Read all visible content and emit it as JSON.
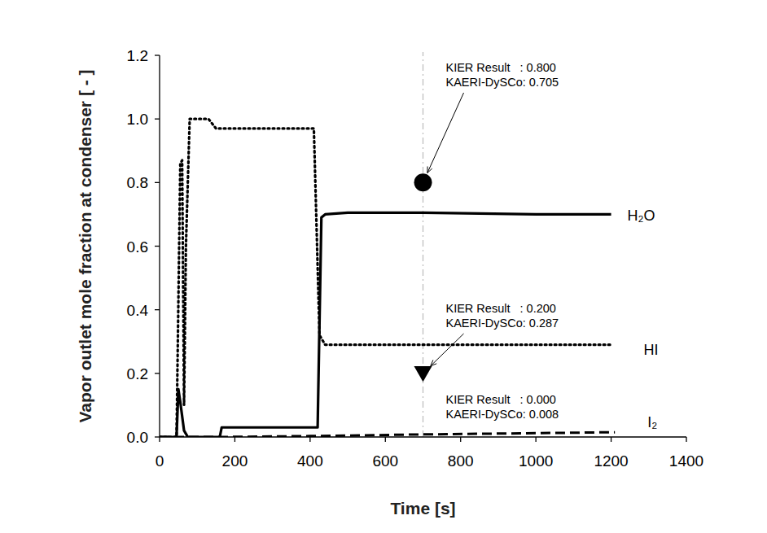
{
  "chart_data": {
    "type": "line",
    "x_label": "Time [s]",
    "y_label": "Vapor outlet mole fraction at condenser [ - ]",
    "xlim": [
      0,
      1400
    ],
    "xticks": [
      0,
      200,
      400,
      600,
      800,
      1000,
      1200,
      1400
    ],
    "ylim": [
      0,
      1.2
    ],
    "yticks": [
      {
        "value": 0,
        "label": "0.0"
      },
      0.2,
      0.4,
      0.6,
      0.8,
      {
        "value": 1,
        "label": "1.0"
      },
      1.2
    ],
    "grid": false,
    "reference_x": 700,
    "series": [
      {
        "name": "H₂O",
        "color": "#000000",
        "line_style": "solid",
        "x": [
          0,
          45,
          50,
          55,
          65,
          75,
          160,
          165,
          420,
          430,
          440,
          500,
          700,
          1000,
          1200
        ],
        "values": [
          0,
          0,
          0.15,
          0.11,
          0.02,
          0,
          0,
          0.03,
          0.03,
          0.69,
          0.7,
          0.705,
          0.705,
          0.7,
          0.7
        ]
      },
      {
        "name": "HI",
        "color": "#000000",
        "line_style": "dotted",
        "x": [
          0,
          45,
          55,
          60,
          65,
          70,
          80,
          130,
          150,
          410,
          425,
          440,
          1200
        ],
        "values": [
          0,
          0,
          0.86,
          0.87,
          0.1,
          0.6,
          1.0,
          1.0,
          0.97,
          0.97,
          0.32,
          0.29,
          0.29
        ]
      },
      {
        "name": "I₂",
        "color": "#000000",
        "line_style": "dashed",
        "x": [
          0,
          160,
          400,
          700,
          1000,
          1210
        ],
        "values": [
          0,
          0,
          0.003,
          0.008,
          0.012,
          0.015
        ]
      }
    ],
    "annotations": [
      {
        "lines": [
          "KIER Result   : 0.800",
          "KAERI-DySCo: 0.705"
        ],
        "point": {
          "x": 700,
          "y": 0.8,
          "marker": "circle"
        }
      },
      {
        "lines": [
          "KIER Result   : 0.200",
          "KAERI-DySCo: 0.287"
        ],
        "point": {
          "x": 700,
          "y": 0.2,
          "marker": "triangle"
        }
      },
      {
        "lines": [
          "KIER Result   : 0.000",
          "KAERI-DySCo: 0.008"
        ]
      }
    ]
  }
}
